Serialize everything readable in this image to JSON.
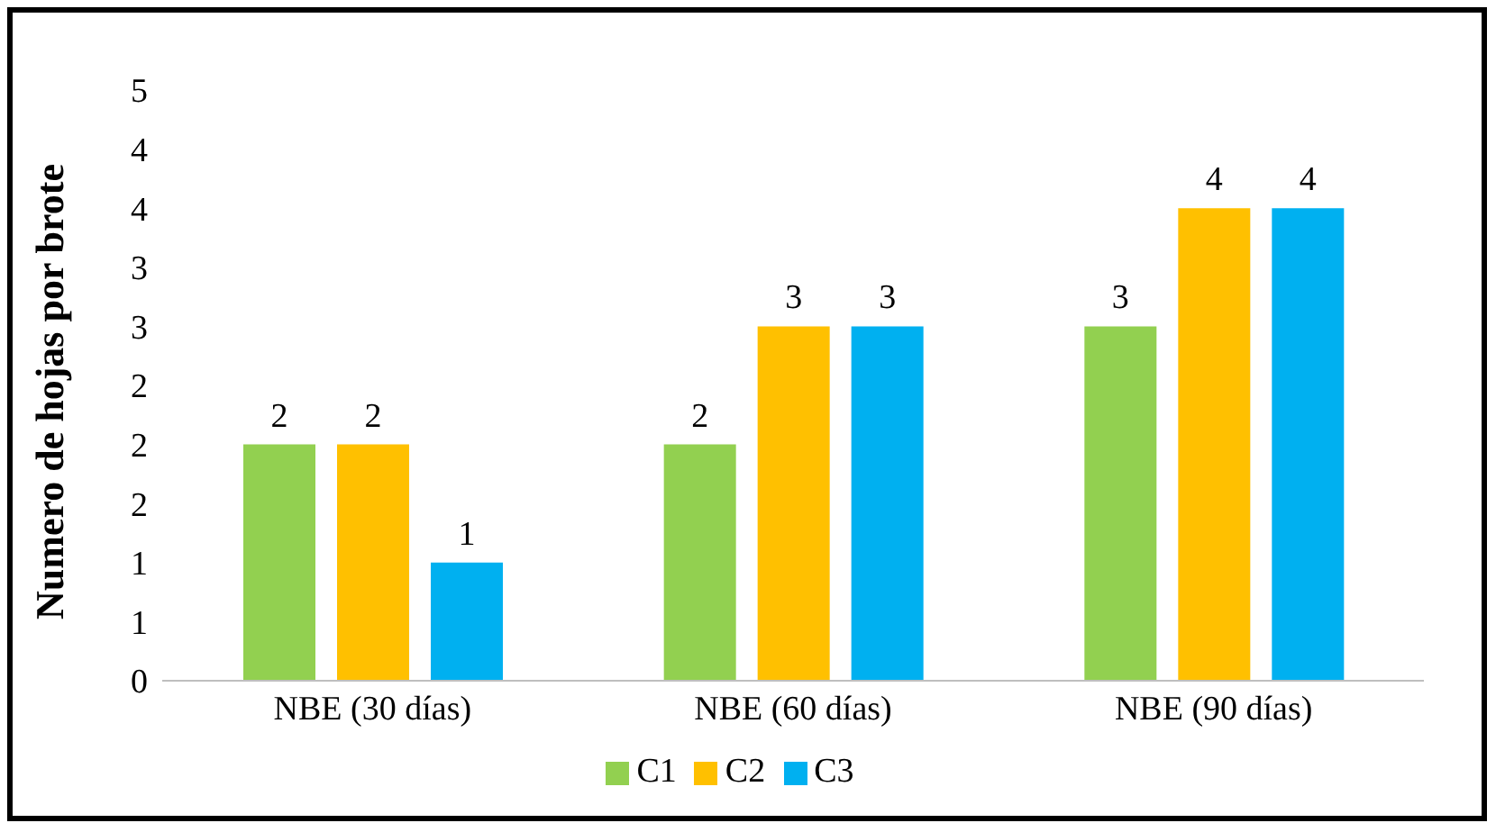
{
  "chart_data": {
    "type": "bar",
    "ylabel": "Numero de hojas por brote",
    "categories": [
      "NBE (30 días)",
      "NBE (60 días)",
      "NBE (90 días)"
    ],
    "series": [
      {
        "name": "C1",
        "color": "#92d050",
        "values": [
          2,
          2,
          3
        ]
      },
      {
        "name": "C2",
        "color": "#ffc000",
        "values": [
          2,
          3,
          4
        ]
      },
      {
        "name": "C3",
        "color": "#00b0f0",
        "values": [
          1,
          3,
          4
        ]
      }
    ],
    "ylim": [
      0,
      5
    ],
    "yticks": [
      0,
      {
        "value": 0.5,
        "label": "1"
      },
      1,
      {
        "value": 1.5,
        "label": "2"
      },
      2,
      {
        "value": 2.5,
        "label": "2"
      },
      3,
      {
        "value": 3.5,
        "label": "3"
      },
      4,
      {
        "value": 4.5,
        "label": "4"
      },
      5
    ],
    "data_labels": true,
    "grid": false,
    "legend": "bottom"
  }
}
